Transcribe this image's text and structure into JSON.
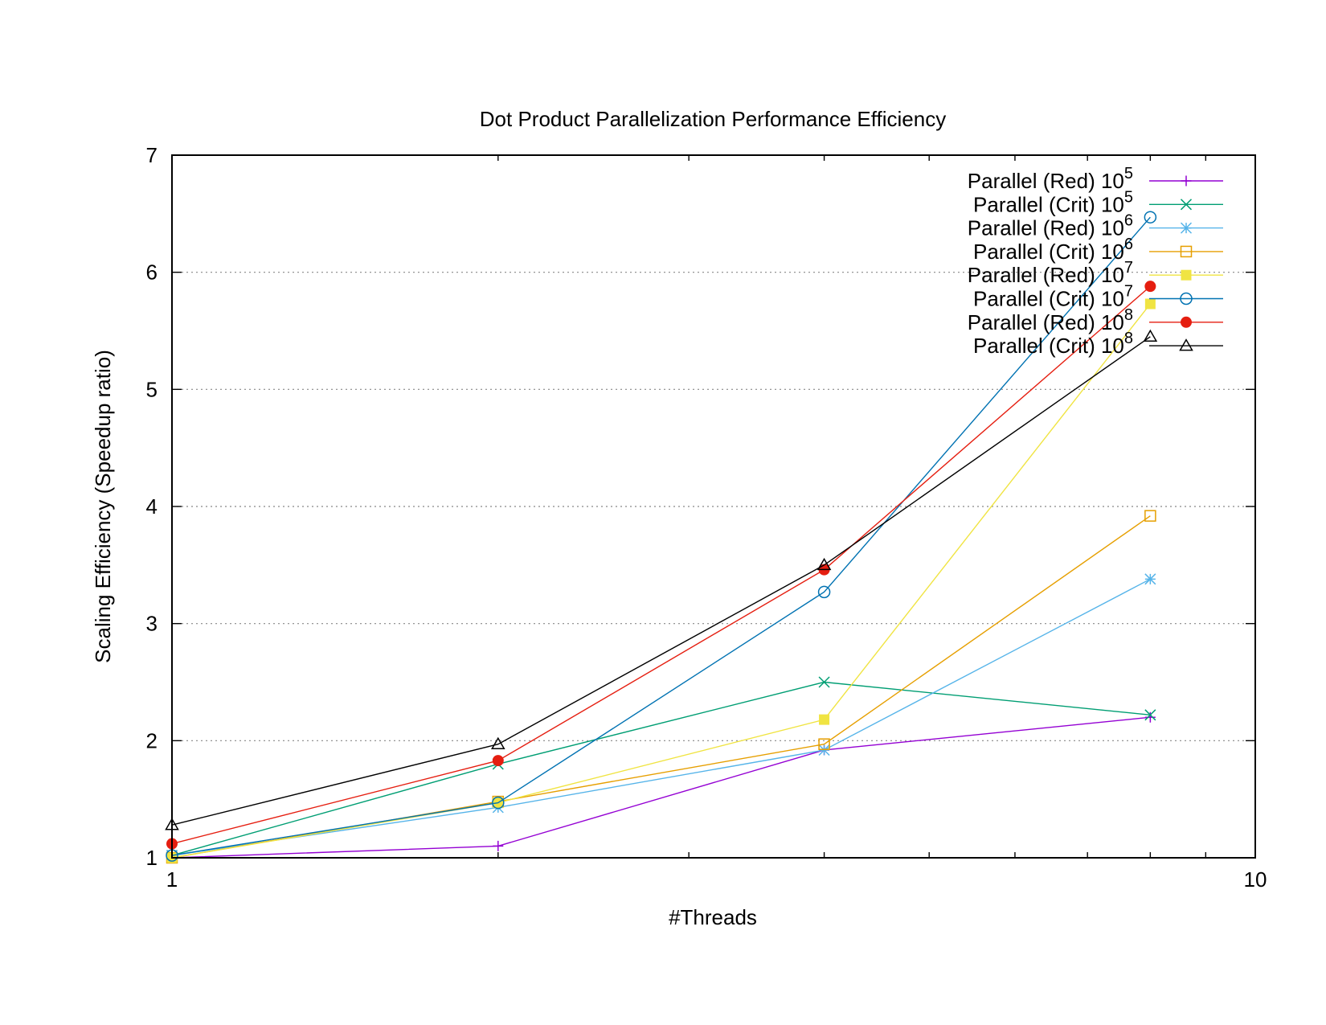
{
  "chart_data": {
    "type": "line",
    "title": "Dot Product Parallelization Performance Efficiency",
    "xlabel": "#Threads",
    "ylabel": "Scaling Efficiency (Speedup ratio)",
    "x_scale": "log",
    "xlim": [
      1,
      10
    ],
    "ylim": [
      1,
      7
    ],
    "x_ticks": [
      1,
      10
    ],
    "y_ticks": [
      1,
      2,
      3,
      4,
      5,
      6,
      7
    ],
    "grid": "y-major dotted",
    "legend_position": "top-right",
    "x": [
      1,
      2,
      4,
      8
    ],
    "series": [
      {
        "name": "Parallel (Red) 10",
        "exponent": "5",
        "color": "#9400d3",
        "marker": "plus",
        "values": [
          1.0,
          1.1,
          1.92,
          2.2
        ]
      },
      {
        "name": "Parallel (Crit) 10",
        "exponent": "5",
        "color": "#009e73",
        "marker": "cross",
        "values": [
          1.02,
          1.8,
          2.5,
          2.22
        ]
      },
      {
        "name": "Parallel (Red) 10",
        "exponent": "6",
        "color": "#56b4e9",
        "marker": "star",
        "values": [
          1.02,
          1.43,
          1.92,
          3.38
        ]
      },
      {
        "name": "Parallel (Crit) 10",
        "exponent": "6",
        "color": "#e69f00",
        "marker": "square-open",
        "values": [
          1.0,
          1.48,
          1.97,
          3.92
        ]
      },
      {
        "name": "Parallel (Red) 10",
        "exponent": "7",
        "color": "#f0e442",
        "marker": "square-filled",
        "values": [
          1.0,
          1.47,
          2.18,
          5.73
        ]
      },
      {
        "name": "Parallel (Crit) 10",
        "exponent": "7",
        "color": "#0072b2",
        "marker": "circle-open",
        "values": [
          1.02,
          1.47,
          3.27,
          6.47
        ]
      },
      {
        "name": "Parallel (Red) 10",
        "exponent": "8",
        "color": "#e51e10",
        "marker": "circle-filled",
        "values": [
          1.12,
          1.83,
          3.46,
          5.88
        ]
      },
      {
        "name": "Parallel (Crit) 10",
        "exponent": "8",
        "color": "#000000",
        "marker": "triangle-open",
        "values": [
          1.28,
          1.97,
          3.5,
          5.45
        ]
      }
    ]
  }
}
